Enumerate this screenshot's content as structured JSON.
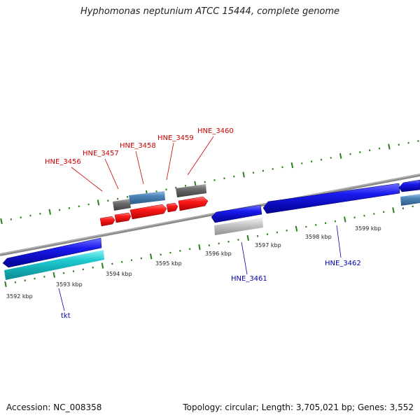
{
  "title": "Hyphomonas neptunium ATCC 15444, complete genome",
  "footer": {
    "accession": "Accession: NC_008358",
    "summary": "Topology: circular; Length: 3,705,021 bp; Genes: 3,552"
  },
  "colors": {
    "backbone": "#8a8a8a",
    "tick": "#2e7d1f",
    "forward_label": "#cc0000",
    "reverse_label": "#0000aa",
    "cds_red": "#ff1a1a",
    "cds_blue": "#1a1aee",
    "cds_cyan": "#1ec8d0",
    "cds_steelblue": "#4f86bb",
    "cds_darkgray": "#6e6e6e",
    "cds_lightgray": "#c8c8c8"
  },
  "ticks": [
    {
      "label": "3592 kbp"
    },
    {
      "label": "3593 kbp"
    },
    {
      "label": "3594 kbp"
    },
    {
      "label": "3595 kbp"
    },
    {
      "label": "3596 kbp"
    },
    {
      "label": "3597 kbp"
    },
    {
      "label": "3598 kbp"
    },
    {
      "label": "3599 kbp"
    }
  ],
  "gene_labels": [
    {
      "text": "HNE_3456",
      "strand": "forward"
    },
    {
      "text": "HNE_3457",
      "strand": "forward"
    },
    {
      "text": "HNE_3458",
      "strand": "forward"
    },
    {
      "text": "HNE_3459",
      "strand": "forward"
    },
    {
      "text": "HNE_3460",
      "strand": "forward"
    },
    {
      "text": "tkt",
      "strand": "reverse"
    },
    {
      "text": "HNE_3461",
      "strand": "reverse"
    },
    {
      "text": "HNE_3462",
      "strand": "reverse"
    }
  ]
}
